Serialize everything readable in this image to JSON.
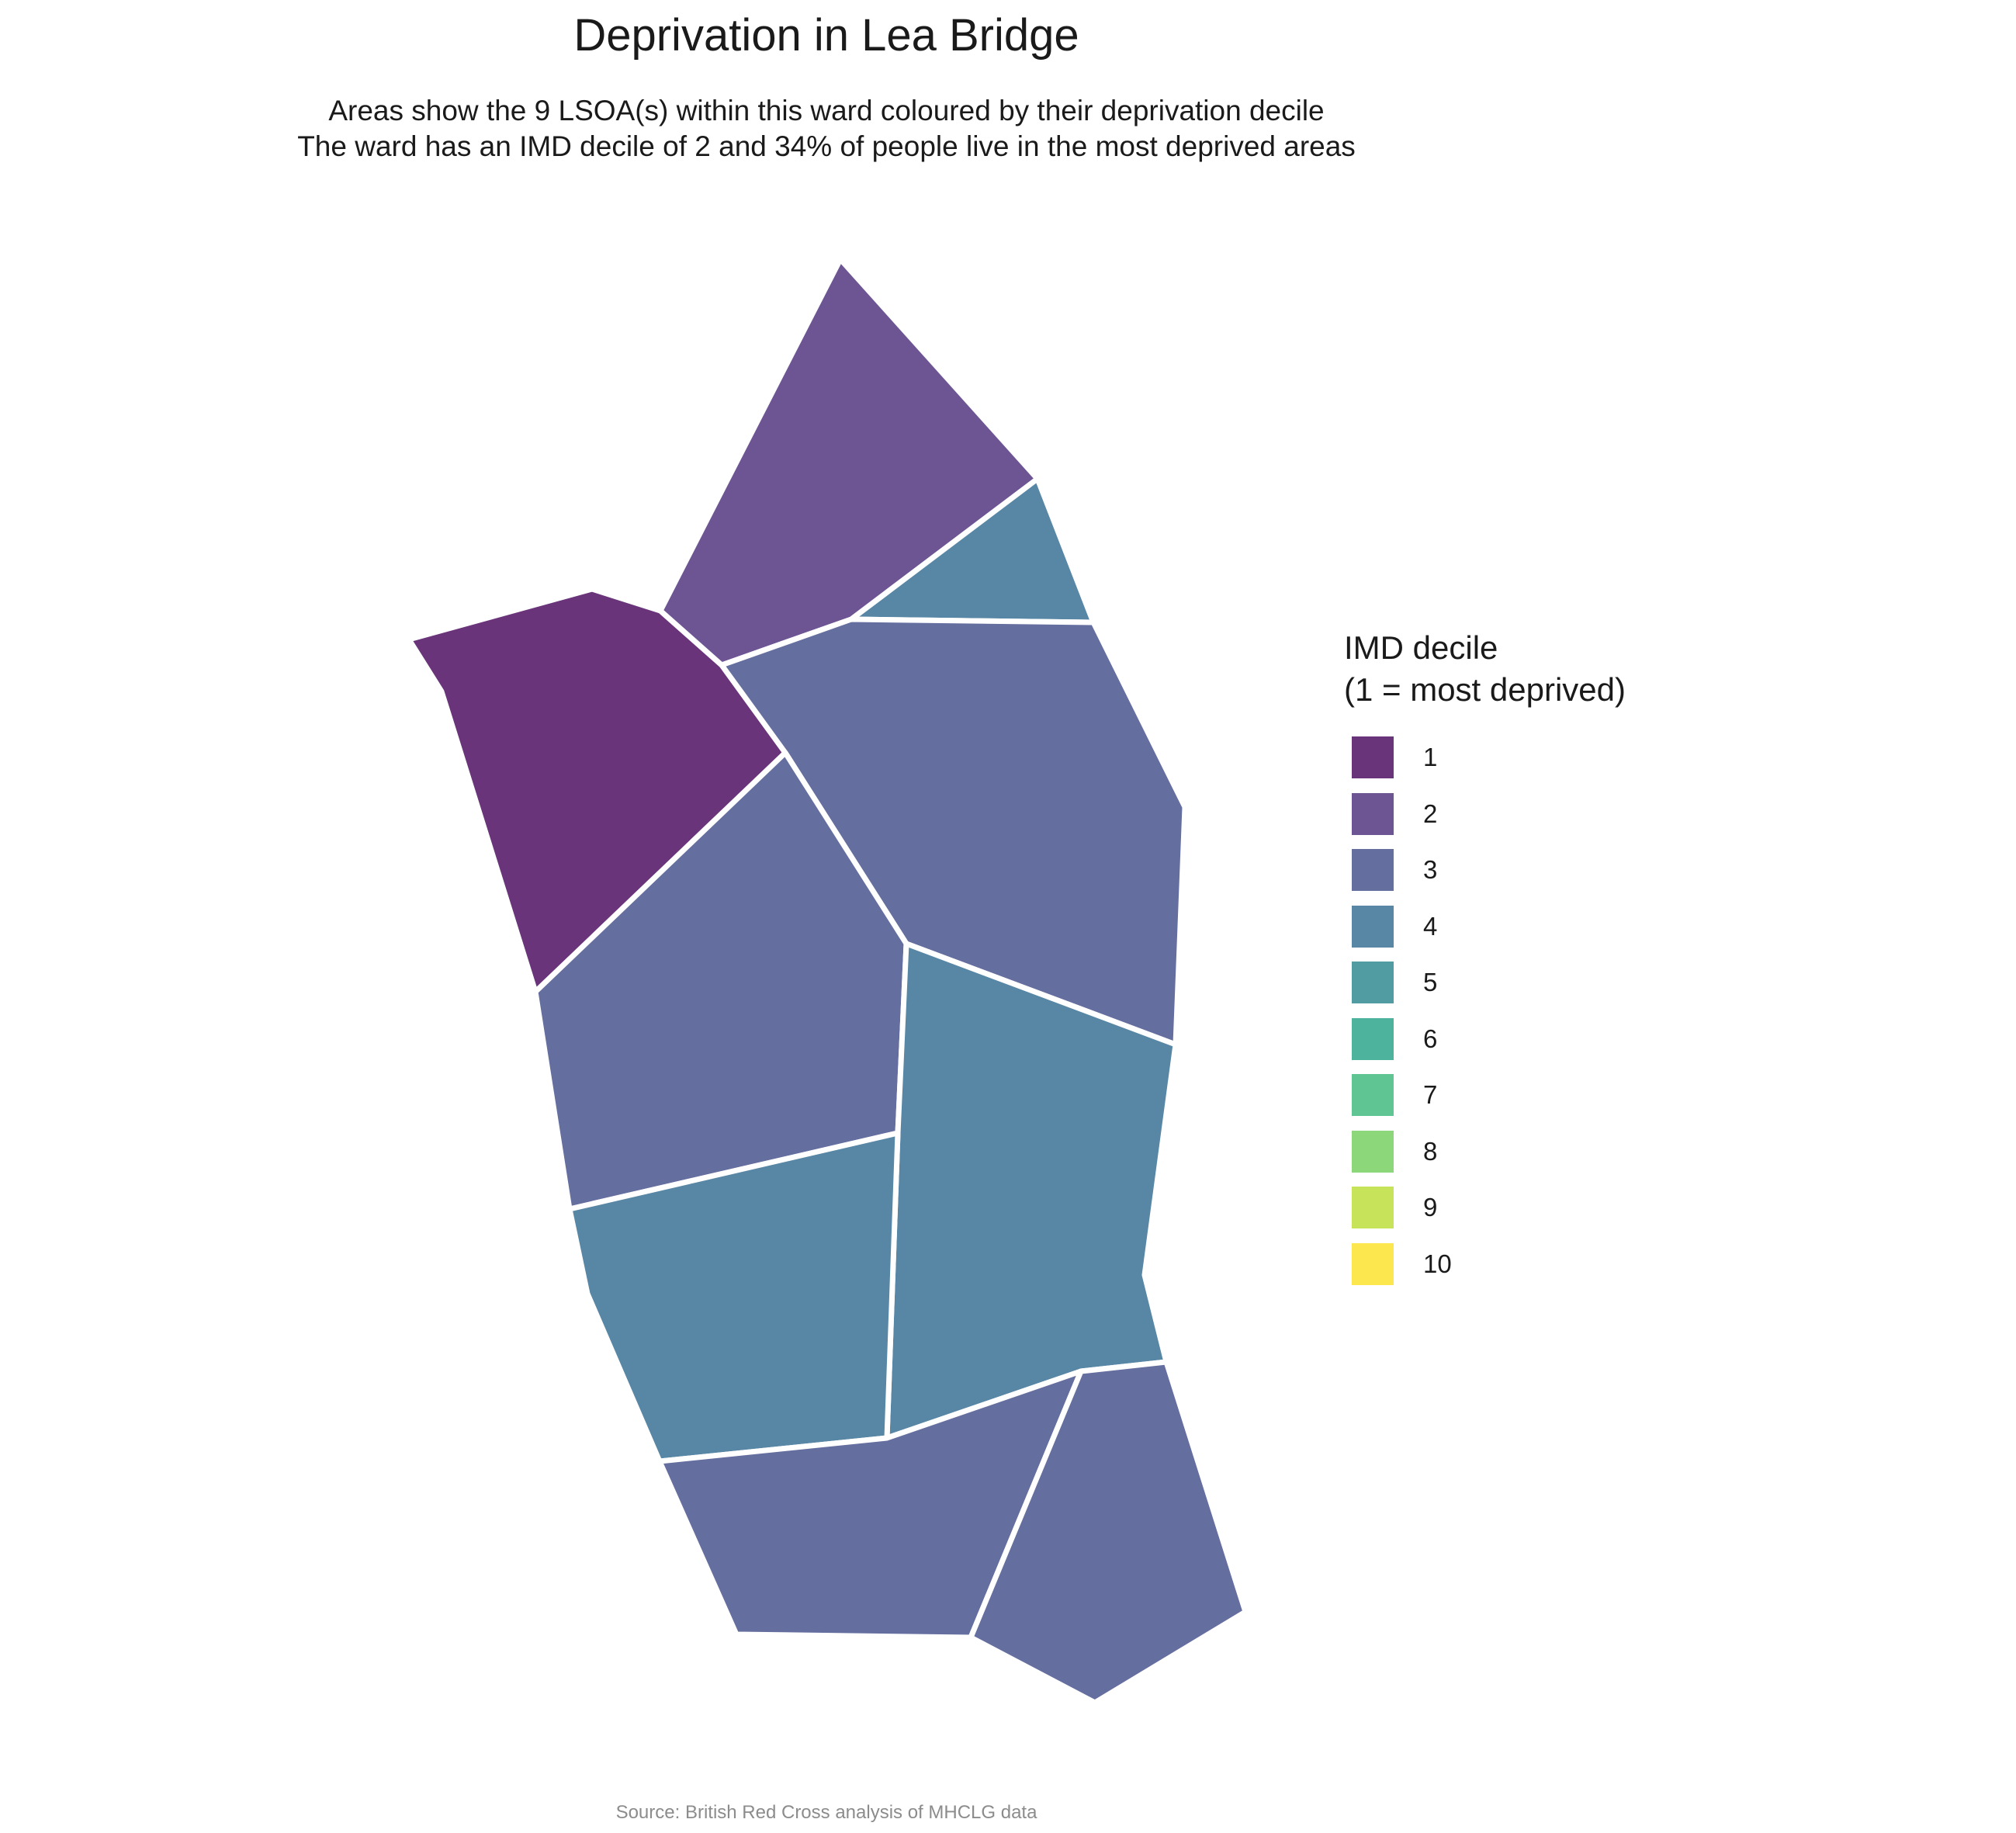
{
  "title": "Deprivation in Lea Bridge",
  "subtitle_line1": "Areas show the 9 LSOA(s) within this ward coloured by their deprivation decile",
  "subtitle_line2": "The ward has an IMD decile of 2 and 34% of people live in the most deprived areas",
  "legend": {
    "title_line1": "IMD decile",
    "title_line2": "(1 = most deprived)",
    "items": [
      {
        "label": "1",
        "color": "#69347a"
      },
      {
        "label": "2",
        "color": "#6d5594"
      },
      {
        "label": "3",
        "color": "#646e9f"
      },
      {
        "label": "4",
        "color": "#5886a5"
      },
      {
        "label": "5",
        "color": "#519ba3"
      },
      {
        "label": "6",
        "color": "#4db39d"
      },
      {
        "label": "7",
        "color": "#5ec593"
      },
      {
        "label": "8",
        "color": "#8bd779"
      },
      {
        "label": "9",
        "color": "#c6e35a"
      },
      {
        "label": "10",
        "color": "#fde74f"
      }
    ]
  },
  "map": {
    "border_color": "#ffffff",
    "areas": [
      {
        "id": "lsoa-a",
        "decile": 1
      },
      {
        "id": "lsoa-b",
        "decile": 2
      },
      {
        "id": "lsoa-c",
        "decile": 4
      },
      {
        "id": "lsoa-d",
        "decile": 3
      },
      {
        "id": "lsoa-e",
        "decile": 3
      },
      {
        "id": "lsoa-f",
        "decile": 4
      },
      {
        "id": "lsoa-g",
        "decile": 4
      },
      {
        "id": "lsoa-h",
        "decile": 3
      },
      {
        "id": "lsoa-i",
        "decile": 3
      }
    ]
  },
  "source": "Source: British Red Cross analysis of MHCLG data"
}
